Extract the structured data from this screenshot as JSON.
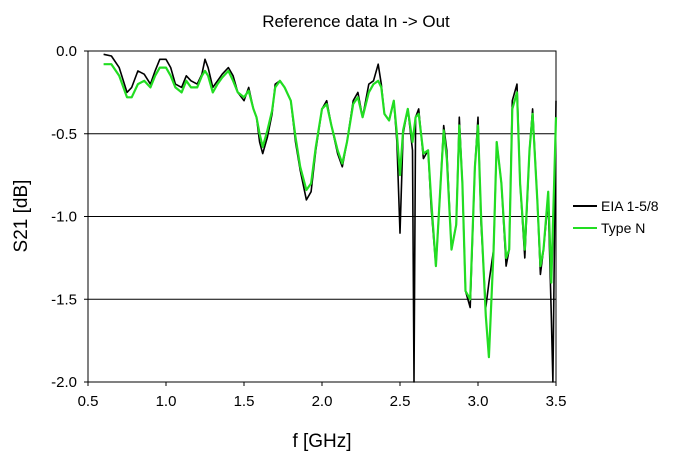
{
  "chart_data": {
    "type": "line",
    "title": "Reference data In -> Out",
    "xlabel": "f [GHz]",
    "ylabel": "S21 [dB]",
    "xlim": [
      0.5,
      3.5
    ],
    "ylim": [
      -2.0,
      0.0
    ],
    "x_ticks": [
      "0.5",
      "1.0",
      "1.5",
      "2.0",
      "2.5",
      "3.0",
      "3.5"
    ],
    "y_ticks": [
      "0.0",
      "-0.5",
      "-1.0",
      "-1.5",
      "-2.0"
    ],
    "grid": "horizontal",
    "legend_position": "right",
    "series": [
      {
        "name": "EIA 1-5/8",
        "color": "#000000",
        "x": [
          0.6,
          0.65,
          0.7,
          0.75,
          0.78,
          0.82,
          0.86,
          0.9,
          0.93,
          0.96,
          1.0,
          1.03,
          1.06,
          1.1,
          1.13,
          1.16,
          1.2,
          1.23,
          1.25,
          1.27,
          1.3,
          1.33,
          1.36,
          1.4,
          1.43,
          1.46,
          1.5,
          1.53,
          1.56,
          1.58,
          1.6,
          1.62,
          1.65,
          1.68,
          1.7,
          1.73,
          1.76,
          1.8,
          1.83,
          1.86,
          1.9,
          1.93,
          1.96,
          2.0,
          2.03,
          2.06,
          2.1,
          2.13,
          2.16,
          2.2,
          2.23,
          2.26,
          2.3,
          2.33,
          2.36,
          2.38,
          2.4,
          2.43,
          2.46,
          2.48,
          2.5,
          2.52,
          2.55,
          2.58,
          2.59,
          2.6,
          2.62,
          2.65,
          2.68,
          2.7,
          2.73,
          2.76,
          2.78,
          2.8,
          2.83,
          2.86,
          2.88,
          2.9,
          2.92,
          2.95,
          2.98,
          3.0,
          3.02,
          3.05,
          3.07,
          3.1,
          3.12,
          3.15,
          3.18,
          3.2,
          3.22,
          3.25,
          3.27,
          3.3,
          3.33,
          3.35,
          3.38,
          3.4,
          3.42,
          3.45,
          3.47,
          3.48,
          3.5
        ],
        "y": [
          -0.02,
          -0.03,
          -0.1,
          -0.25,
          -0.22,
          -0.12,
          -0.14,
          -0.2,
          -0.12,
          -0.05,
          -0.05,
          -0.1,
          -0.2,
          -0.22,
          -0.15,
          -0.18,
          -0.2,
          -0.14,
          -0.05,
          -0.1,
          -0.22,
          -0.18,
          -0.14,
          -0.1,
          -0.15,
          -0.25,
          -0.3,
          -0.22,
          -0.35,
          -0.4,
          -0.55,
          -0.62,
          -0.52,
          -0.38,
          -0.2,
          -0.18,
          -0.22,
          -0.3,
          -0.55,
          -0.72,
          -0.9,
          -0.85,
          -0.6,
          -0.35,
          -0.3,
          -0.45,
          -0.62,
          -0.7,
          -0.55,
          -0.3,
          -0.25,
          -0.4,
          -0.2,
          -0.18,
          -0.08,
          -0.2,
          -0.38,
          -0.42,
          -0.3,
          -0.55,
          -1.1,
          -0.5,
          -0.35,
          -0.6,
          -2.0,
          -0.4,
          -0.35,
          -0.65,
          -0.6,
          -0.95,
          -1.3,
          -0.8,
          -0.45,
          -0.6,
          -1.2,
          -1.05,
          -0.4,
          -0.8,
          -1.45,
          -1.55,
          -0.7,
          -0.4,
          -1.05,
          -1.55,
          -1.4,
          -1.2,
          -0.55,
          -0.8,
          -1.3,
          -1.2,
          -0.3,
          -0.2,
          -0.8,
          -1.25,
          -0.6,
          -0.35,
          -0.9,
          -1.35,
          -1.2,
          -0.9,
          -1.6,
          -2.0,
          -0.3
        ]
      },
      {
        "name": "Type N",
        "color": "#22dd22",
        "x": [
          0.6,
          0.65,
          0.7,
          0.75,
          0.78,
          0.82,
          0.86,
          0.9,
          0.93,
          0.96,
          1.0,
          1.03,
          1.06,
          1.1,
          1.13,
          1.16,
          1.2,
          1.23,
          1.25,
          1.27,
          1.3,
          1.33,
          1.36,
          1.4,
          1.43,
          1.46,
          1.5,
          1.53,
          1.56,
          1.58,
          1.6,
          1.62,
          1.65,
          1.68,
          1.7,
          1.73,
          1.76,
          1.8,
          1.83,
          1.86,
          1.9,
          1.93,
          1.96,
          2.0,
          2.03,
          2.06,
          2.1,
          2.13,
          2.16,
          2.2,
          2.23,
          2.26,
          2.3,
          2.33,
          2.36,
          2.38,
          2.4,
          2.43,
          2.46,
          2.48,
          2.5,
          2.52,
          2.55,
          2.58,
          2.6,
          2.62,
          2.65,
          2.68,
          2.7,
          2.73,
          2.76,
          2.78,
          2.8,
          2.83,
          2.86,
          2.88,
          2.9,
          2.92,
          2.95,
          2.98,
          3.0,
          3.02,
          3.05,
          3.07,
          3.1,
          3.12,
          3.15,
          3.18,
          3.2,
          3.22,
          3.25,
          3.27,
          3.3,
          3.33,
          3.35,
          3.38,
          3.4,
          3.42,
          3.45,
          3.47,
          3.5
        ],
        "y": [
          -0.08,
          -0.08,
          -0.15,
          -0.28,
          -0.28,
          -0.2,
          -0.18,
          -0.22,
          -0.15,
          -0.1,
          -0.1,
          -0.15,
          -0.22,
          -0.25,
          -0.18,
          -0.22,
          -0.22,
          -0.15,
          -0.12,
          -0.15,
          -0.25,
          -0.2,
          -0.16,
          -0.12,
          -0.18,
          -0.25,
          -0.28,
          -0.24,
          -0.35,
          -0.4,
          -0.5,
          -0.58,
          -0.48,
          -0.36,
          -0.22,
          -0.18,
          -0.22,
          -0.3,
          -0.52,
          -0.7,
          -0.84,
          -0.8,
          -0.58,
          -0.35,
          -0.32,
          -0.45,
          -0.6,
          -0.68,
          -0.55,
          -0.32,
          -0.28,
          -0.4,
          -0.25,
          -0.2,
          -0.18,
          -0.22,
          -0.38,
          -0.42,
          -0.3,
          -0.5,
          -0.75,
          -0.48,
          -0.35,
          -0.55,
          -0.4,
          -0.38,
          -0.62,
          -0.6,
          -0.9,
          -1.3,
          -0.8,
          -0.48,
          -0.65,
          -1.2,
          -1.05,
          -0.45,
          -0.8,
          -1.45,
          -1.5,
          -0.7,
          -0.45,
          -1.0,
          -1.6,
          -1.85,
          -1.2,
          -0.55,
          -0.8,
          -1.25,
          -1.2,
          -0.35,
          -0.25,
          -0.8,
          -1.2,
          -0.6,
          -0.38,
          -0.9,
          -1.3,
          -1.2,
          -0.85,
          -1.4,
          -0.4
        ]
      }
    ]
  }
}
